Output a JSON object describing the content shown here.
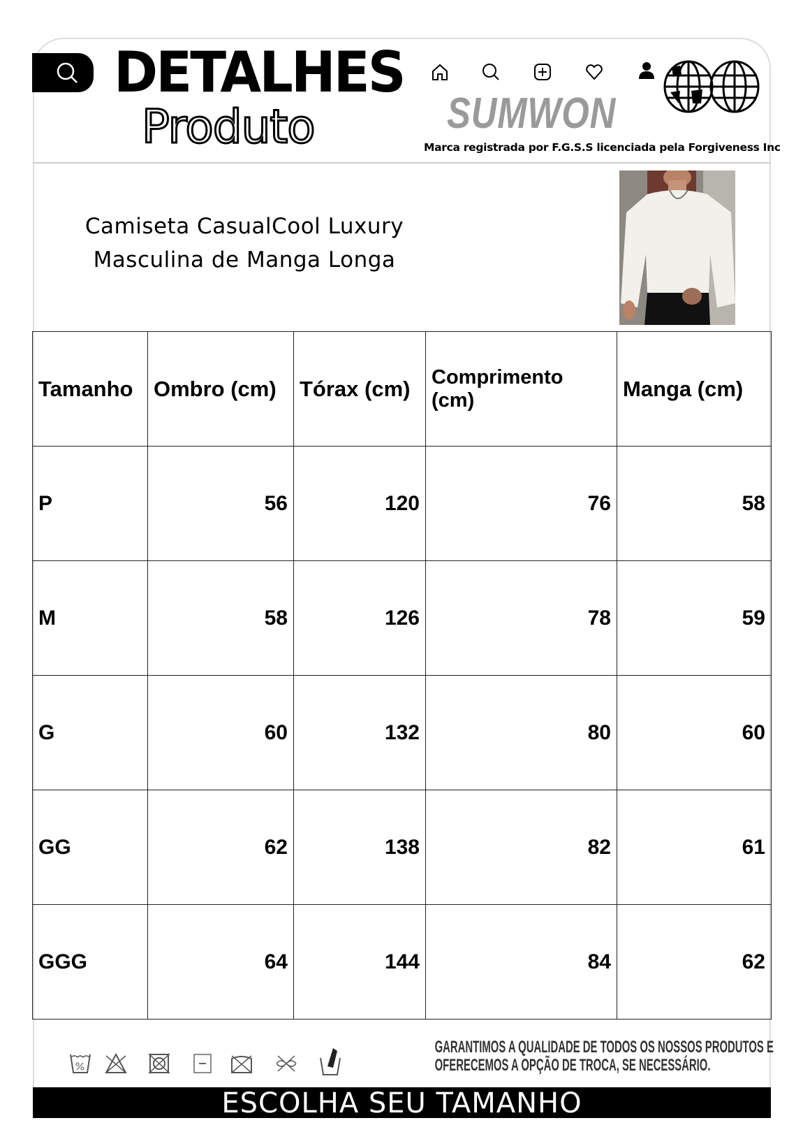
{
  "header": {
    "title_line1": "DETALHES",
    "title_line2": "Produto",
    "brand": "SUMWON",
    "trademark": "Marca registrada por F.G.S.S licenciada pela Forgiveness Inc",
    "icons": [
      "search-icon",
      "home-icon",
      "search-icon",
      "add-icon",
      "heart-icon",
      "user-icon",
      "globe-icon"
    ]
  },
  "product": {
    "title_line1": "Camiseta CasualCool Luxury",
    "title_line2": "Masculina de Manga Longa"
  },
  "size_table": {
    "headers": [
      "Tamanho",
      "Ombro (cm)",
      "Tórax (cm)",
      "Comprimento (cm)",
      "Manga (cm)"
    ],
    "rows": [
      [
        "P",
        "56",
        "120",
        "76",
        "58"
      ],
      [
        "M",
        "58",
        "126",
        "78",
        "59"
      ],
      [
        "G",
        "60",
        "132",
        "80",
        "60"
      ],
      [
        "GG",
        "62",
        "138",
        "82",
        "61"
      ],
      [
        "GGG",
        "64",
        "144",
        "84",
        "62"
      ]
    ]
  },
  "footer": {
    "care_icons": [
      "wash-30-icon",
      "no-bleach-icon",
      "no-tumble-dry-icon",
      "dry-flat-icon",
      "no-dry-clean-icon",
      "no-wring-icon",
      "hand-wash-icon"
    ],
    "guarantee_line1": "GARANTIMOS A QUALIDADE DE TODOS OS NOSSOS PRODUTOS E",
    "guarantee_line2": "OFERECEMOS A OPÇÃO DE TROCA, SE NECESSÁRIO.",
    "cta": "ESCOLHA SEU TAMANHO"
  }
}
